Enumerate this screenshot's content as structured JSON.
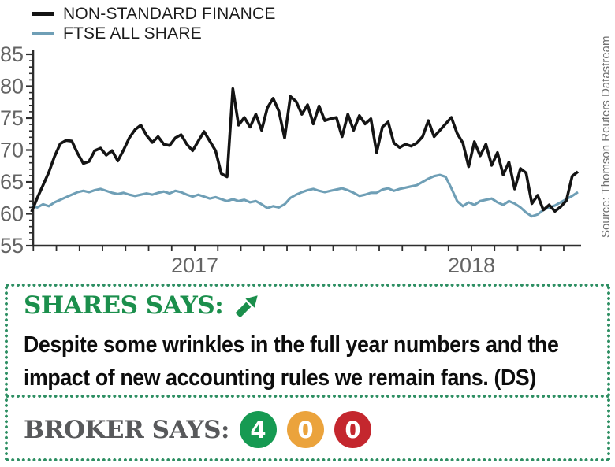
{
  "legend": {
    "items": [
      {
        "label": "NON-STANDARD FINANCE"
      },
      {
        "label": "FTSE ALL SHARE"
      }
    ]
  },
  "source_note": "Source: Thomson Reuters Datastream",
  "chart_data": {
    "type": "line",
    "title": "",
    "xlabel": "",
    "ylabel": "",
    "ylim": [
      55,
      85
    ],
    "y_ticks": [
      55,
      60,
      65,
      70,
      75,
      80,
      85
    ],
    "grid": false,
    "legend_position": "top-left",
    "x_axis_note": "weekly prices, late 2016 to mid 2018; monthly minor ticks",
    "x_tick_labels": [
      {
        "label": "2017",
        "pos": 0.295
      },
      {
        "label": "2018",
        "pos": 0.8
      }
    ],
    "series": [
      {
        "name": "NON-STANDARD FINANCE",
        "color": "#141414",
        "values": [
          60.3,
          62.5,
          64.5,
          66.5,
          69.0,
          71.0,
          71.5,
          71.4,
          69.5,
          67.9,
          68.2,
          69.9,
          70.3,
          69.2,
          69.9,
          68.3,
          70.0,
          71.9,
          73.2,
          73.9,
          72.3,
          71.2,
          72.1,
          70.9,
          70.7,
          71.9,
          72.4,
          70.9,
          69.9,
          71.4,
          72.9,
          71.4,
          69.9,
          66.3,
          65.8,
          79.6,
          73.9,
          75.1,
          73.6,
          75.6,
          73.1,
          76.6,
          78.1,
          76.1,
          71.9,
          78.4,
          77.6,
          75.6,
          77.1,
          74.1,
          76.9,
          74.6,
          74.9,
          75.1,
          72.1,
          75.6,
          73.1,
          75.4,
          74.1,
          74.9,
          69.6,
          73.6,
          74.4,
          71.1,
          70.4,
          70.9,
          70.6,
          71.1,
          72.1,
          74.6,
          72.1,
          73.1,
          74.1,
          75.1,
          72.6,
          71.1,
          67.4,
          71.3,
          69.1,
          70.9,
          67.6,
          69.6,
          66.1,
          68.1,
          63.9,
          67.1,
          66.4,
          61.6,
          62.9,
          60.6,
          61.4,
          60.4,
          61.1,
          62.1,
          65.9,
          66.6
        ]
      },
      {
        "name": "FTSE ALL SHARE",
        "color": "#6f9fb6",
        "values": [
          61.3,
          61.0,
          61.5,
          61.2,
          61.8,
          62.2,
          62.6,
          63.0,
          63.4,
          63.6,
          63.4,
          63.7,
          63.9,
          63.6,
          63.3,
          63.1,
          63.3,
          63.0,
          62.8,
          63.0,
          63.2,
          63.0,
          63.3,
          63.5,
          63.2,
          63.6,
          63.4,
          63.0,
          62.7,
          63.0,
          62.7,
          62.4,
          62.6,
          62.3,
          62.0,
          62.3,
          62.0,
          62.2,
          61.8,
          62.0,
          61.5,
          60.9,
          61.2,
          61.0,
          61.5,
          62.5,
          63.0,
          63.4,
          63.7,
          63.9,
          63.6,
          63.4,
          63.6,
          63.8,
          64.0,
          63.7,
          63.3,
          62.8,
          63.0,
          63.3,
          63.3,
          63.8,
          64.0,
          63.6,
          63.9,
          64.1,
          64.3,
          64.5,
          65.0,
          65.5,
          65.9,
          66.1,
          65.8,
          64.0,
          62.0,
          61.2,
          61.8,
          61.4,
          62.0,
          62.2,
          62.4,
          61.8,
          61.4,
          62.0,
          61.6,
          61.0,
          60.2,
          59.6,
          59.9,
          60.6,
          61.0,
          61.3,
          61.8,
          62.3,
          62.8,
          63.4
        ]
      }
    ]
  },
  "shares_says": {
    "heading": "SHARES SAYS:",
    "direction_icon": "up-right-arrow",
    "comment_lines": [
      "Despite some wrinkles in the full year numbers and the",
      "impact of new accounting rules we remain fans. (DS)"
    ]
  },
  "broker_says": {
    "heading": "BROKER SAYS:",
    "ratings": [
      {
        "count": "4",
        "type": "buy",
        "color": "#169a52"
      },
      {
        "count": "0",
        "type": "hold",
        "color": "#eba33c"
      },
      {
        "count": "0",
        "type": "sell",
        "color": "#c4272e"
      }
    ]
  },
  "colors": {
    "accent_green": "#1b8f4c",
    "dot_green": "#2e8f63",
    "broker_gray": "#58595b",
    "axis_gray": "#646464",
    "line_black": "#141414",
    "line_blue": "#6f9fb6"
  }
}
